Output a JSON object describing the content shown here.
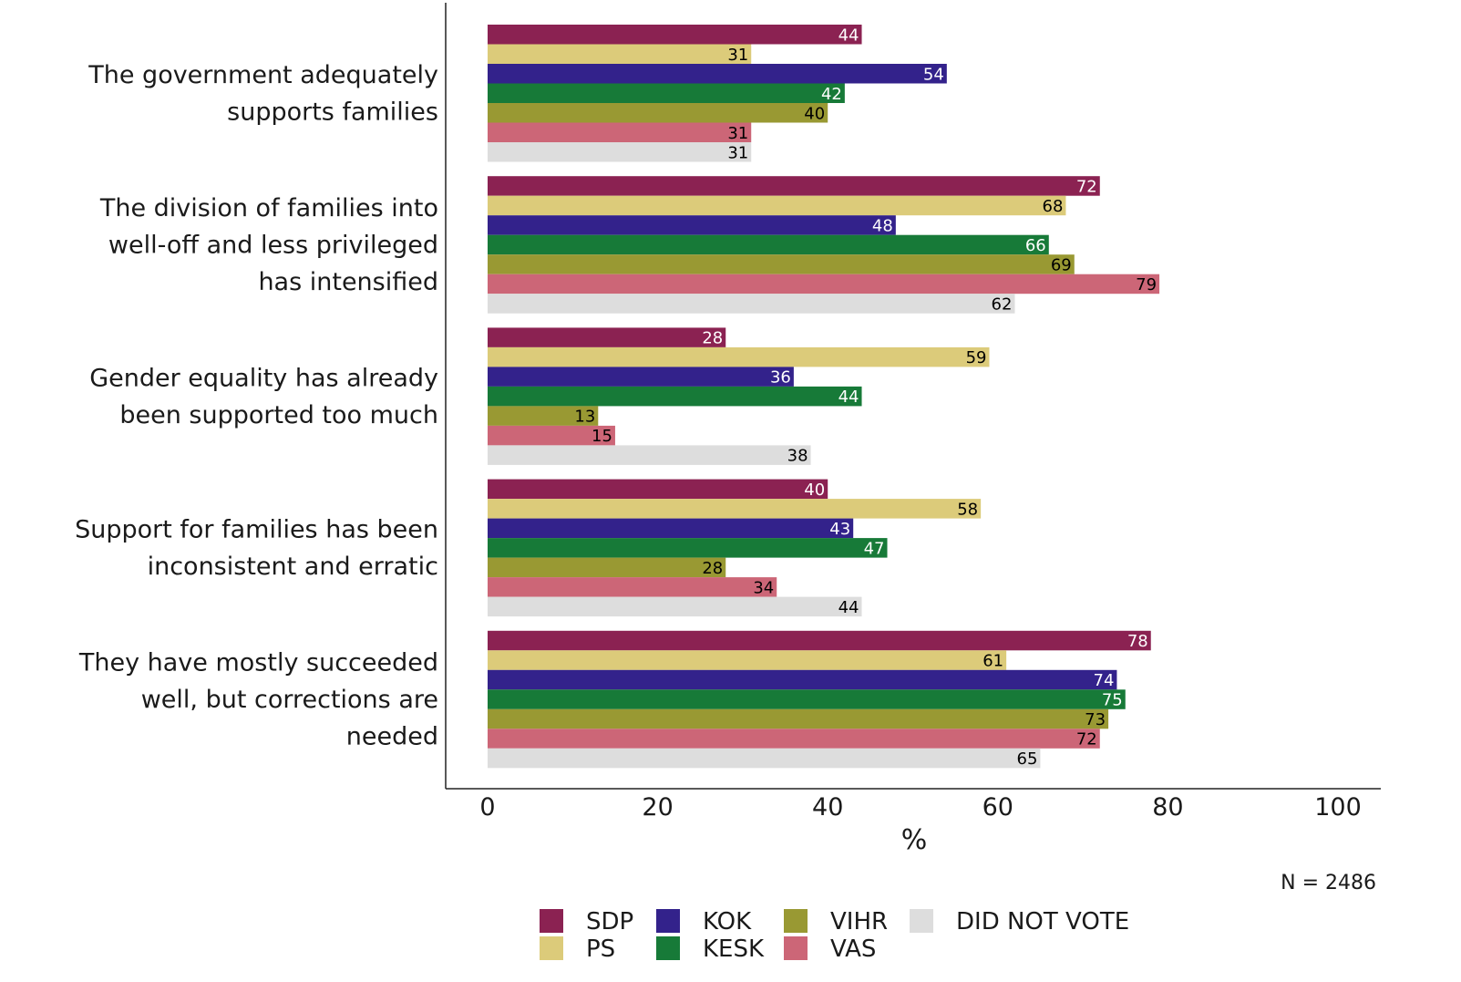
{
  "chart_data": {
    "type": "bar",
    "orientation": "horizontal",
    "categories": [
      [
        "The government adequately",
        "supports families"
      ],
      [
        "The division of families into",
        "well-off and less privileged",
        "has intensified"
      ],
      [
        "Gender equality has already",
        "been supported too much"
      ],
      [
        "Support for families has been",
        "inconsistent and erratic"
      ],
      [
        "They have mostly succeeded",
        "well, but corrections are",
        "needed"
      ]
    ],
    "series": [
      {
        "name": "SDP",
        "color": "#8b2252",
        "label_color": "#ffffff",
        "values": [
          44,
          72,
          28,
          40,
          78
        ]
      },
      {
        "name": "PS",
        "color": "#dccb7a",
        "label_color": "#000000",
        "values": [
          31,
          68,
          59,
          58,
          61
        ]
      },
      {
        "name": "KOK",
        "color": "#33228b",
        "label_color": "#ffffff",
        "values": [
          54,
          48,
          36,
          43,
          74
        ]
      },
      {
        "name": "KESK",
        "color": "#177a38",
        "label_color": "#ffffff",
        "values": [
          42,
          66,
          44,
          47,
          75
        ]
      },
      {
        "name": "VIHR",
        "color": "#999933",
        "label_color": "#000000",
        "values": [
          40,
          69,
          13,
          28,
          73
        ]
      },
      {
        "name": "VAS",
        "color": "#cc6677",
        "label_color": "#000000",
        "values": [
          31,
          79,
          15,
          34,
          72
        ]
      },
      {
        "name": "DID NOT VOTE",
        "color": "#dddddd",
        "label_color": "#000000",
        "values": [
          31,
          62,
          38,
          44,
          65
        ]
      }
    ],
    "xlabel": "%",
    "xlim": [
      0,
      100
    ],
    "xticks": [
      0,
      20,
      40,
      60,
      80,
      100
    ],
    "note": "N = 2486",
    "legend": {
      "position": "bottom",
      "columns": [
        [
          "SDP",
          "PS"
        ],
        [
          "KOK",
          "KESK"
        ],
        [
          "VIHR",
          "VAS"
        ],
        [
          "DID NOT VOTE"
        ]
      ]
    },
    "grid": false
  }
}
